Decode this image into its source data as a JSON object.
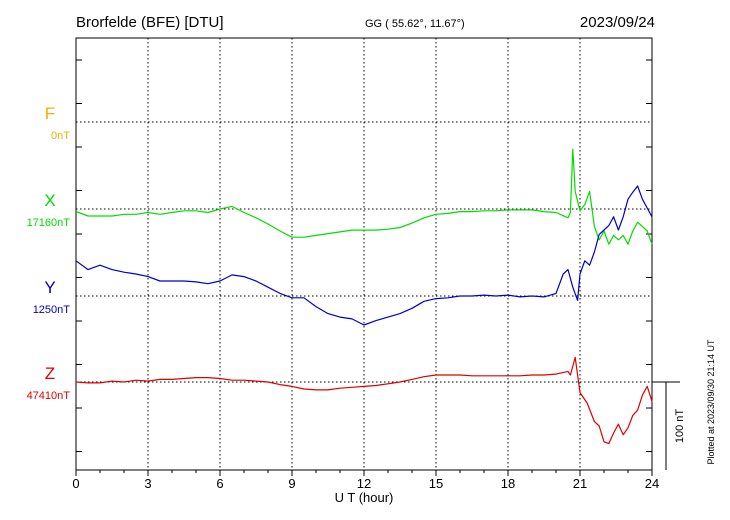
{
  "header": {
    "station": "Brorfelde (BFE)  [DTU]",
    "coords": "GG ( 55.62°,  11.67°)",
    "date": "2023/09/24"
  },
  "side_note": "Plotted at 2023/09/30 21:14 UT",
  "scale_bar": {
    "label": "100 nT",
    "value_nT": 100
  },
  "chart_data": {
    "type": "line",
    "xlabel": "U T (hour)",
    "xlim": [
      0,
      24
    ],
    "xticks": [
      0,
      3,
      6,
      9,
      12,
      15,
      18,
      21,
      24
    ],
    "grid": true,
    "panels": [
      {
        "name": "F",
        "baseline": "0nT",
        "color": "#f0b000",
        "values": []
      },
      {
        "name": "X",
        "baseline": "17160nT",
        "color": "#00dd00",
        "points": [
          [
            0,
            -3
          ],
          [
            0.5,
            -8
          ],
          [
            1,
            -8
          ],
          [
            1.5,
            -8
          ],
          [
            2,
            -6
          ],
          [
            2.5,
            -6
          ],
          [
            3,
            -4
          ],
          [
            3.5,
            -6
          ],
          [
            4,
            -4
          ],
          [
            4.5,
            -2
          ],
          [
            5,
            -2
          ],
          [
            5.5,
            -4
          ],
          [
            6,
            0
          ],
          [
            6.5,
            3
          ],
          [
            7,
            -4
          ],
          [
            7.5,
            -10
          ],
          [
            8,
            -17
          ],
          [
            8.5,
            -25
          ],
          [
            9,
            -32
          ],
          [
            9.5,
            -32
          ],
          [
            10,
            -30
          ],
          [
            10.5,
            -28
          ],
          [
            11,
            -26
          ],
          [
            11.5,
            -24
          ],
          [
            12,
            -24
          ],
          [
            12.5,
            -24
          ],
          [
            13,
            -23
          ],
          [
            13.5,
            -21
          ],
          [
            14,
            -16
          ],
          [
            14.5,
            -10
          ],
          [
            15,
            -6
          ],
          [
            15.5,
            -5
          ],
          [
            16,
            -3
          ],
          [
            16.5,
            -3
          ],
          [
            17,
            -2
          ],
          [
            17.5,
            -2
          ],
          [
            18,
            -1
          ],
          [
            18.5,
            -1
          ],
          [
            19,
            -1
          ],
          [
            19.5,
            -3
          ],
          [
            20,
            -4
          ],
          [
            20.5,
            -10
          ],
          [
            20.6,
            -4
          ],
          [
            20.7,
            68
          ],
          [
            20.8,
            20
          ],
          [
            21,
            -2
          ],
          [
            21.2,
            5
          ],
          [
            21.4,
            20
          ],
          [
            21.6,
            -20
          ],
          [
            21.8,
            -35
          ],
          [
            22,
            -25
          ],
          [
            22.2,
            -40
          ],
          [
            22.4,
            -30
          ],
          [
            22.6,
            -35
          ],
          [
            22.8,
            -30
          ],
          [
            23,
            -40
          ],
          [
            23.2,
            -25
          ],
          [
            23.4,
            -15
          ],
          [
            23.6,
            -20
          ],
          [
            23.8,
            -25
          ],
          [
            24,
            -40
          ]
        ]
      },
      {
        "name": "Y",
        "baseline": "1250nT",
        "color": "#0000cc",
        "points": [
          [
            0,
            40
          ],
          [
            0.5,
            30
          ],
          [
            1,
            35
          ],
          [
            1.5,
            30
          ],
          [
            2,
            27
          ],
          [
            2.5,
            25
          ],
          [
            3,
            22
          ],
          [
            3.5,
            17
          ],
          [
            4,
            17
          ],
          [
            4.5,
            17
          ],
          [
            5,
            16
          ],
          [
            5.5,
            14
          ],
          [
            6,
            17
          ],
          [
            6.5,
            24
          ],
          [
            7,
            22
          ],
          [
            7.5,
            17
          ],
          [
            8,
            10
          ],
          [
            8.5,
            3
          ],
          [
            9,
            -2
          ],
          [
            9.5,
            -2
          ],
          [
            10,
            -12
          ],
          [
            10.5,
            -20
          ],
          [
            11,
            -24
          ],
          [
            11.5,
            -26
          ],
          [
            12,
            -33
          ],
          [
            12.5,
            -28
          ],
          [
            13,
            -24
          ],
          [
            13.5,
            -20
          ],
          [
            14,
            -14
          ],
          [
            14.5,
            -6
          ],
          [
            15,
            -3
          ],
          [
            15.5,
            -2
          ],
          [
            16,
            0
          ],
          [
            16.5,
            0
          ],
          [
            17,
            1
          ],
          [
            17.5,
            0
          ],
          [
            18,
            1
          ],
          [
            18.5,
            -1
          ],
          [
            19,
            0
          ],
          [
            19.5,
            -1
          ],
          [
            20,
            3
          ],
          [
            20.3,
            25
          ],
          [
            20.5,
            30
          ],
          [
            20.7,
            10
          ],
          [
            20.9,
            -5
          ],
          [
            21,
            25
          ],
          [
            21.2,
            40
          ],
          [
            21.4,
            35
          ],
          [
            21.6,
            50
          ],
          [
            21.8,
            70
          ],
          [
            22,
            75
          ],
          [
            22.2,
            80
          ],
          [
            22.4,
            90
          ],
          [
            22.6,
            75
          ],
          [
            22.8,
            90
          ],
          [
            23,
            110
          ],
          [
            23.2,
            118
          ],
          [
            23.4,
            125
          ],
          [
            23.6,
            110
          ],
          [
            23.8,
            100
          ],
          [
            24,
            90
          ]
        ]
      },
      {
        "name": "Z",
        "baseline": "47410nT",
        "color": "#dd0000",
        "points": [
          [
            0,
            0
          ],
          [
            0.5,
            -1
          ],
          [
            1,
            -1
          ],
          [
            1.5,
            1
          ],
          [
            2,
            0
          ],
          [
            2.5,
            2
          ],
          [
            3,
            1
          ],
          [
            3.5,
            3
          ],
          [
            4,
            3
          ],
          [
            4.5,
            4
          ],
          [
            5,
            5
          ],
          [
            5.5,
            5
          ],
          [
            6,
            4
          ],
          [
            6.5,
            2
          ],
          [
            7,
            2
          ],
          [
            7.5,
            1
          ],
          [
            8,
            0
          ],
          [
            8.5,
            -3
          ],
          [
            9,
            -5
          ],
          [
            9.5,
            -8
          ],
          [
            10,
            -9
          ],
          [
            10.5,
            -9
          ],
          [
            11,
            -7
          ],
          [
            11.5,
            -6
          ],
          [
            12,
            -5
          ],
          [
            12.5,
            -4
          ],
          [
            13,
            -2
          ],
          [
            13.5,
            0
          ],
          [
            14,
            3
          ],
          [
            14.5,
            6
          ],
          [
            15,
            8
          ],
          [
            15.5,
            8
          ],
          [
            16,
            8
          ],
          [
            16.5,
            7
          ],
          [
            17,
            7
          ],
          [
            17.5,
            7
          ],
          [
            18,
            7
          ],
          [
            18.5,
            7
          ],
          [
            19,
            8
          ],
          [
            19.5,
            8
          ],
          [
            20,
            9
          ],
          [
            20.5,
            12
          ],
          [
            20.6,
            8
          ],
          [
            20.8,
            28
          ],
          [
            21,
            -12
          ],
          [
            21.3,
            -24
          ],
          [
            21.6,
            -45
          ],
          [
            21.8,
            -50
          ],
          [
            22,
            -68
          ],
          [
            22.2,
            -70
          ],
          [
            22.4,
            -58
          ],
          [
            22.6,
            -48
          ],
          [
            22.8,
            -60
          ],
          [
            23,
            -52
          ],
          [
            23.2,
            -38
          ],
          [
            23.4,
            -32
          ],
          [
            23.6,
            -15
          ],
          [
            23.8,
            -5
          ],
          [
            24,
            -22
          ]
        ]
      }
    ]
  }
}
